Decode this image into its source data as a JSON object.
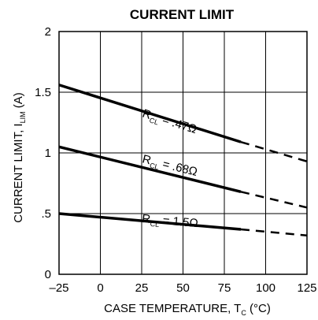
{
  "chart_data": {
    "type": "line",
    "title": "CURRENT LIMIT",
    "ylabel": {
      "main": "CURRENT LIMIT, I",
      "sub": "LIM",
      "unit": " (A)"
    },
    "xlabel": {
      "main": "CASE TEMPERATURE, T",
      "sub": "C",
      "unit": " (°C)"
    },
    "xlim": [
      -25,
      125
    ],
    "ylim": [
      0,
      2
    ],
    "x_ticks": [
      -25,
      0,
      25,
      50,
      75,
      100,
      125
    ],
    "x_tick_labels": [
      "–25",
      "0",
      "25",
      "50",
      "75",
      "100",
      "125"
    ],
    "y_ticks": [
      0,
      0.5,
      1,
      1.5,
      2
    ],
    "y_tick_labels": [
      "0",
      ".5",
      "1",
      "1.5",
      "2"
    ],
    "grid": true,
    "series": [
      {
        "annotation": {
          "main": "R",
          "sub": "CL",
          "value": " = .47Ω"
        },
        "x": [
          -25,
          85
        ],
        "y": [
          1.56,
          1.09
        ],
        "extrapolated": {
          "x": [
            85,
            125
          ],
          "y": [
            1.09,
            0.93
          ]
        }
      },
      {
        "annotation": {
          "main": "R",
          "sub": "CL",
          "value": " = .68Ω"
        },
        "x": [
          -25,
          85
        ],
        "y": [
          1.05,
          0.68
        ],
        "extrapolated": {
          "x": [
            85,
            125
          ],
          "y": [
            0.68,
            0.55
          ]
        }
      },
      {
        "annotation": {
          "main": "R",
          "sub": "CL",
          "value": " = 1.5Ω"
        },
        "x": [
          -25,
          85
        ],
        "y": [
          0.5,
          0.37
        ],
        "extrapolated": {
          "x": [
            85,
            125
          ],
          "y": [
            0.37,
            0.32
          ]
        }
      }
    ]
  }
}
